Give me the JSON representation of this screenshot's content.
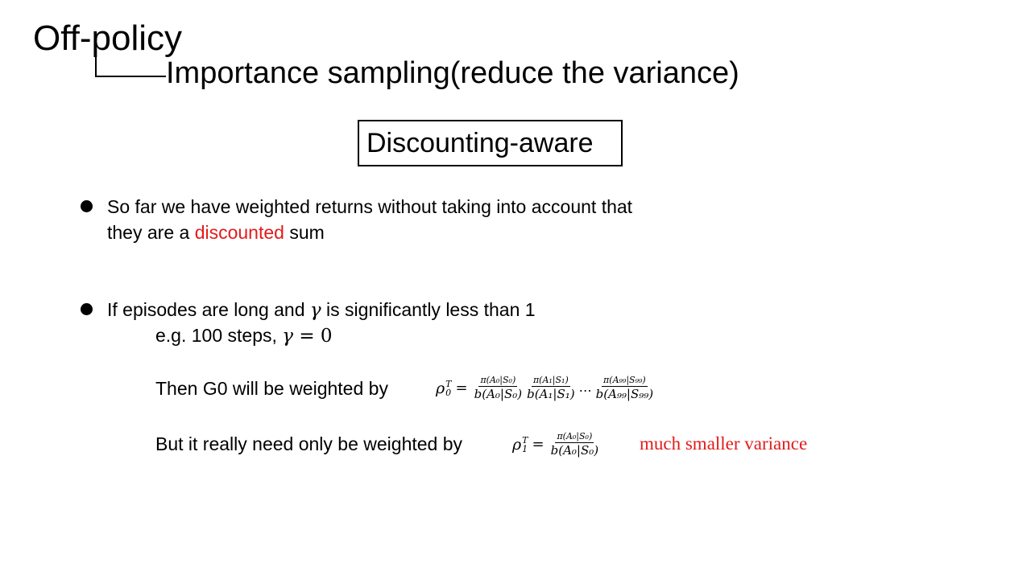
{
  "slide": {
    "title": "Off-policy",
    "subtitle": "Importance sampling(reduce the variance)",
    "box_label": "Discounting-aware"
  },
  "bullets": [
    {
      "line1": "So far we have weighted returns without taking into account that",
      "line2_before": "they are a ",
      "line2_highlight": "discounted",
      "line2_after": " sum"
    },
    {
      "line1_before": "If episodes are long and ",
      "line1_gamma": "γ",
      "line1_after": " is significantly less than 1",
      "example_before": "e.g. 100 steps, ",
      "example_gamma": "γ",
      "example_eq": " = 0",
      "then_text": "Then G0 will be weighted by",
      "but_text": "But it really need only be weighted by",
      "note": "much smaller variance"
    }
  ],
  "formulas": {
    "full": {
      "rho": "ρ",
      "sup": "T",
      "sub": "0",
      "eq": "=",
      "fractions": [
        {
          "num": "π(A₀|S₀)",
          "den": "b(A₀|S₀)"
        },
        {
          "num": "π(A₁|S₁)",
          "den": "b(A₁|S₁)"
        }
      ],
      "dots": "⋯",
      "last_fraction": {
        "num": "π(A₉₉|S₉₉)",
        "den": "b(A₉₉|S₉₉)"
      }
    },
    "short": {
      "rho": "ρ",
      "sup": "T",
      "sub": "1",
      "eq": "=",
      "fraction": {
        "num": "π(A₀|S₀)",
        "den": "b(A₀|S₀)"
      }
    }
  }
}
